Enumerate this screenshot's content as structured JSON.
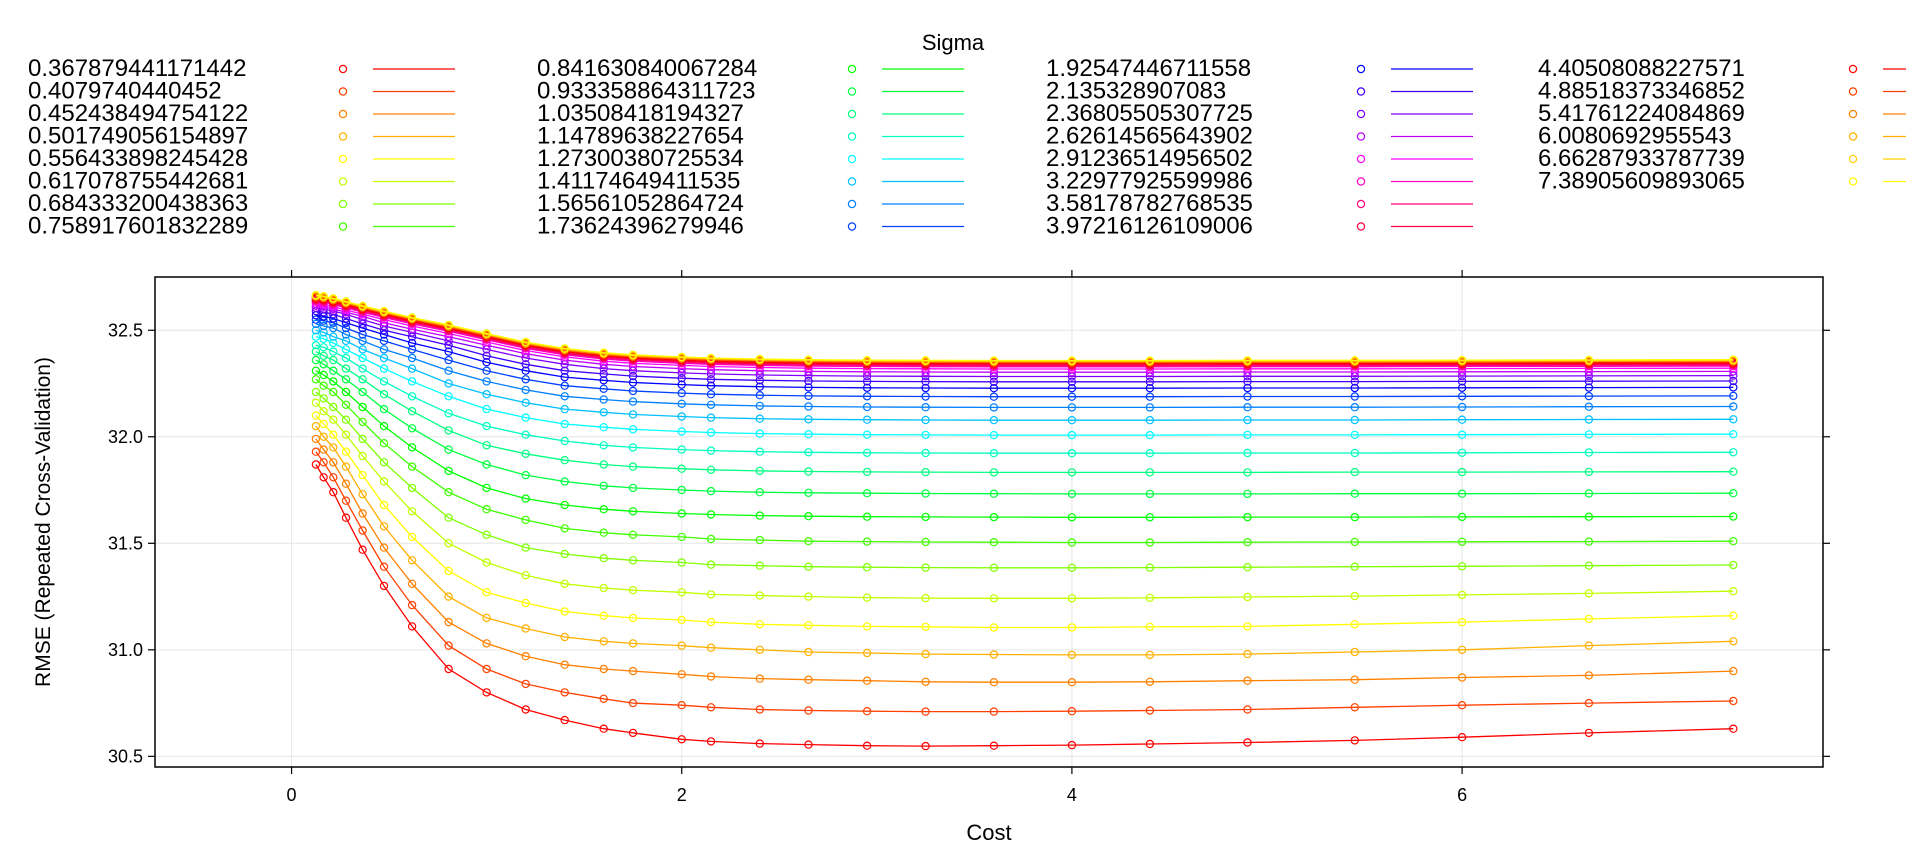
{
  "chart_data": {
    "type": "line",
    "legend_title": "Sigma",
    "xlabel": "Cost",
    "ylabel": "RMSE (Repeated Cross-Validation)",
    "xlim": [
      -0.7,
      7.85
    ],
    "ylim": [
      30.45,
      32.75
    ],
    "x_ticks": [
      0,
      2,
      4,
      6
    ],
    "y_ticks": [
      30.5,
      31.0,
      31.5,
      32.0,
      32.5
    ],
    "x_tick_labels": [
      "0",
      "2",
      "4",
      "6"
    ],
    "y_tick_labels": [
      "30.5",
      "31.0",
      "31.5",
      "32.0",
      "32.5"
    ],
    "legend_placement": "top",
    "grid": true,
    "x": [
      0.125,
      0.164,
      0.214,
      0.279,
      0.364,
      0.474,
      0.618,
      0.805,
      1.0,
      1.2,
      1.4,
      1.6,
      1.75,
      2.0,
      2.15,
      2.4,
      2.65,
      2.95,
      3.25,
      3.6,
      4.0,
      4.4,
      4.9,
      5.45,
      6.0,
      6.65,
      7.39
    ],
    "series": [
      {
        "name": "0.367879441171442",
        "color": "#FF0000",
        "values": [
          31.87,
          31.81,
          31.74,
          31.62,
          31.47,
          31.3,
          31.11,
          30.91,
          30.8,
          30.72,
          30.67,
          30.63,
          30.61,
          30.58,
          30.57,
          30.56,
          30.555,
          30.55,
          30.548,
          30.55,
          30.553,
          30.558,
          30.565,
          30.575,
          30.59,
          30.61,
          30.63
        ]
      },
      {
        "name": "0.4079740440452",
        "color": "#FF4000",
        "values": [
          31.93,
          31.88,
          31.81,
          31.7,
          31.56,
          31.39,
          31.21,
          31.02,
          30.91,
          30.84,
          30.8,
          30.77,
          30.75,
          30.74,
          30.73,
          30.72,
          30.715,
          30.712,
          30.71,
          30.71,
          30.712,
          30.715,
          30.72,
          30.73,
          30.74,
          30.75,
          30.76
        ]
      },
      {
        "name": "0.452438494754122",
        "color": "#FF8000",
        "values": [
          31.99,
          31.94,
          31.88,
          31.78,
          31.64,
          31.48,
          31.31,
          31.13,
          31.03,
          30.97,
          30.93,
          30.91,
          30.9,
          30.885,
          30.875,
          30.865,
          30.86,
          30.855,
          30.85,
          30.848,
          30.848,
          30.85,
          30.855,
          30.86,
          30.87,
          30.88,
          30.9
        ]
      },
      {
        "name": "0.501749056154897",
        "color": "#FFB000",
        "values": [
          32.05,
          32.0,
          31.95,
          31.86,
          31.73,
          31.58,
          31.42,
          31.25,
          31.15,
          31.1,
          31.06,
          31.04,
          31.03,
          31.02,
          31.01,
          31.0,
          30.99,
          30.985,
          30.98,
          30.978,
          30.976,
          30.976,
          30.98,
          30.99,
          31.0,
          31.02,
          31.04
        ]
      },
      {
        "name": "0.556433898245428",
        "color": "#FFFF00",
        "values": [
          32.1,
          32.06,
          32.01,
          31.93,
          31.82,
          31.68,
          31.53,
          31.37,
          31.27,
          31.22,
          31.18,
          31.16,
          31.15,
          31.14,
          31.13,
          31.12,
          31.115,
          31.11,
          31.108,
          31.105,
          31.105,
          31.108,
          31.11,
          31.12,
          31.13,
          31.145,
          31.16
        ]
      },
      {
        "name": "0.617078755442681",
        "color": "#C0FF00",
        "values": [
          32.16,
          32.12,
          32.08,
          32.01,
          31.91,
          31.79,
          31.65,
          31.5,
          31.41,
          31.35,
          31.31,
          31.29,
          31.28,
          31.27,
          31.26,
          31.255,
          31.25,
          31.245,
          31.243,
          31.242,
          31.242,
          31.244,
          31.248,
          31.252,
          31.258,
          31.265,
          31.275
        ]
      },
      {
        "name": "0.684333200438363",
        "color": "#80FF00",
        "values": [
          32.21,
          32.18,
          32.14,
          32.08,
          31.99,
          31.88,
          31.76,
          31.62,
          31.54,
          31.48,
          31.45,
          31.43,
          31.42,
          31.41,
          31.4,
          31.395,
          31.39,
          31.388,
          31.386,
          31.385,
          31.385,
          31.386,
          31.388,
          31.39,
          31.392,
          31.395,
          31.398
        ]
      },
      {
        "name": "0.758917601832289",
        "color": "#40FF00",
        "values": [
          32.27,
          32.24,
          32.21,
          32.15,
          32.07,
          31.97,
          31.86,
          31.74,
          31.66,
          31.61,
          31.57,
          31.55,
          31.54,
          31.53,
          31.52,
          31.515,
          31.51,
          31.508,
          31.506,
          31.505,
          31.504,
          31.504,
          31.505,
          31.506,
          31.507,
          31.508,
          31.51
        ]
      },
      {
        "name": "0.841630840067284",
        "color": "#00FF00",
        "values": [
          32.31,
          32.29,
          32.26,
          32.21,
          32.14,
          32.05,
          31.95,
          31.84,
          31.76,
          31.71,
          31.68,
          31.66,
          31.65,
          31.64,
          31.635,
          31.63,
          31.627,
          31.625,
          31.624,
          31.623,
          31.622,
          31.622,
          31.623,
          31.623,
          31.624,
          31.625,
          31.626
        ]
      },
      {
        "name": "0.933358864311723",
        "color": "#00FF40",
        "values": [
          32.36,
          32.34,
          32.31,
          32.27,
          32.21,
          32.13,
          32.04,
          31.94,
          31.87,
          31.82,
          31.79,
          31.77,
          31.76,
          31.75,
          31.745,
          31.74,
          31.737,
          31.735,
          31.734,
          31.733,
          31.732,
          31.732,
          31.732,
          31.733,
          31.733,
          31.734,
          31.735
        ]
      },
      {
        "name": "1.03508418194327",
        "color": "#00FF80",
        "values": [
          32.4,
          32.38,
          32.36,
          32.32,
          32.27,
          32.2,
          32.12,
          32.03,
          31.96,
          31.92,
          31.89,
          31.87,
          31.86,
          31.85,
          31.845,
          31.84,
          31.837,
          31.835,
          31.834,
          31.833,
          31.833,
          31.833,
          31.833,
          31.834,
          31.834,
          31.835,
          31.836
        ]
      },
      {
        "name": "1.14789638227654",
        "color": "#00FFC0",
        "values": [
          32.43,
          32.42,
          32.4,
          32.37,
          32.32,
          32.26,
          32.19,
          32.11,
          32.05,
          32.01,
          31.98,
          31.96,
          31.95,
          31.94,
          31.935,
          31.93,
          31.927,
          31.925,
          31.924,
          31.923,
          31.923,
          31.923,
          31.924,
          31.924,
          31.925,
          31.926,
          31.927
        ]
      },
      {
        "name": "1.27300380725534",
        "color": "#00FFFF",
        "values": [
          32.47,
          32.46,
          32.44,
          32.41,
          32.37,
          32.32,
          32.26,
          32.19,
          32.13,
          32.09,
          32.06,
          32.045,
          32.035,
          32.025,
          32.02,
          32.015,
          32.012,
          32.01,
          32.009,
          32.008,
          32.008,
          32.008,
          32.009,
          32.009,
          32.01,
          32.011,
          32.012
        ]
      },
      {
        "name": "1.41174649411535",
        "color": "#00C0FF",
        "values": [
          32.5,
          32.49,
          32.47,
          32.45,
          32.41,
          32.37,
          32.32,
          32.25,
          32.2,
          32.16,
          32.13,
          32.115,
          32.105,
          32.095,
          32.09,
          32.085,
          32.082,
          32.08,
          32.079,
          32.078,
          32.078,
          32.078,
          32.079,
          32.079,
          32.08,
          32.081,
          32.082
        ]
      },
      {
        "name": "1.56561052864724",
        "color": "#0080FF",
        "values": [
          32.53,
          32.52,
          32.51,
          32.48,
          32.45,
          32.41,
          32.37,
          32.31,
          32.26,
          32.22,
          32.19,
          32.175,
          32.165,
          32.155,
          32.15,
          32.145,
          32.142,
          32.14,
          32.139,
          32.138,
          32.138,
          32.138,
          32.139,
          32.139,
          32.14,
          32.141,
          32.142
        ]
      },
      {
        "name": "1.73624396279946",
        "color": "#0040FF",
        "values": [
          32.55,
          32.545,
          32.535,
          32.51,
          32.48,
          32.45,
          32.41,
          32.36,
          32.31,
          32.27,
          32.24,
          32.225,
          32.215,
          32.205,
          32.2,
          32.195,
          32.192,
          32.19,
          32.189,
          32.188,
          32.188,
          32.188,
          32.189,
          32.189,
          32.19,
          32.191,
          32.192
        ]
      },
      {
        "name": "1.92547446711558",
        "color": "#0000FF",
        "values": [
          32.57,
          32.565,
          32.555,
          32.535,
          32.51,
          32.48,
          32.44,
          32.4,
          32.35,
          32.31,
          32.28,
          32.265,
          32.255,
          32.245,
          32.24,
          32.235,
          32.232,
          32.23,
          32.229,
          32.228,
          32.228,
          32.228,
          32.229,
          32.229,
          32.23,
          32.231,
          32.232
        ]
      },
      {
        "name": "2.135328907083",
        "color": "#4000FF",
        "values": [
          32.59,
          32.585,
          32.575,
          32.555,
          32.53,
          32.5,
          32.47,
          32.43,
          32.38,
          32.34,
          32.31,
          32.295,
          32.285,
          32.275,
          32.27,
          32.265,
          32.262,
          32.26,
          32.259,
          32.258,
          32.258,
          32.258,
          32.259,
          32.259,
          32.26,
          32.261,
          32.262
        ]
      },
      {
        "name": "2.36805505307725",
        "color": "#8000FF",
        "values": [
          32.605,
          32.6,
          32.59,
          32.575,
          32.55,
          32.52,
          32.49,
          32.45,
          32.41,
          32.37,
          32.34,
          32.32,
          32.31,
          32.3,
          32.295,
          32.29,
          32.287,
          32.285,
          32.284,
          32.283,
          32.283,
          32.283,
          32.284,
          32.284,
          32.285,
          32.286,
          32.287
        ]
      },
      {
        "name": "2.62614565643902",
        "color": "#C000FF",
        "values": [
          32.615,
          32.61,
          32.6,
          32.585,
          32.565,
          32.535,
          32.505,
          32.47,
          32.43,
          32.39,
          32.36,
          32.34,
          32.33,
          32.32,
          32.315,
          32.31,
          32.307,
          32.305,
          32.304,
          32.303,
          32.303,
          32.303,
          32.304,
          32.304,
          32.305,
          32.306,
          32.307
        ]
      },
      {
        "name": "2.91236514956502",
        "color": "#FF00FF",
        "values": [
          32.625,
          32.62,
          32.61,
          32.595,
          32.575,
          32.55,
          32.52,
          32.485,
          32.445,
          32.405,
          32.375,
          32.355,
          32.345,
          32.335,
          32.33,
          32.325,
          32.322,
          32.32,
          32.319,
          32.318,
          32.318,
          32.318,
          32.319,
          32.319,
          32.32,
          32.321,
          32.322
        ]
      },
      {
        "name": "3.22977925599986",
        "color": "#FF00C0",
        "values": [
          32.635,
          32.63,
          32.62,
          32.605,
          32.585,
          32.56,
          32.53,
          32.495,
          32.455,
          32.415,
          32.385,
          32.365,
          32.355,
          32.345,
          32.34,
          32.335,
          32.332,
          32.33,
          32.329,
          32.328,
          32.328,
          32.328,
          32.329,
          32.329,
          32.33,
          32.331,
          32.332
        ]
      },
      {
        "name": "3.58178782768535",
        "color": "#FF0080",
        "values": [
          32.64,
          32.635,
          32.625,
          32.61,
          32.59,
          32.565,
          32.535,
          32.5,
          32.46,
          32.42,
          32.39,
          32.37,
          32.36,
          32.35,
          32.345,
          32.34,
          32.337,
          32.335,
          32.334,
          32.333,
          32.333,
          32.333,
          32.334,
          32.334,
          32.335,
          32.336,
          32.337
        ]
      },
      {
        "name": "3.97216126109006",
        "color": "#FF0040",
        "values": [
          32.645,
          32.64,
          32.63,
          32.615,
          32.595,
          32.57,
          32.54,
          32.505,
          32.465,
          32.425,
          32.395,
          32.375,
          32.365,
          32.355,
          32.35,
          32.345,
          32.342,
          32.34,
          32.339,
          32.338,
          32.338,
          32.338,
          32.339,
          32.339,
          32.34,
          32.341,
          32.342
        ]
      },
      {
        "name": "4.40508088227571",
        "color": "#FF0000",
        "values": [
          32.65,
          32.645,
          32.635,
          32.62,
          32.6,
          32.575,
          32.545,
          32.51,
          32.47,
          32.43,
          32.4,
          32.38,
          32.37,
          32.36,
          32.355,
          32.35,
          32.347,
          32.345,
          32.344,
          32.343,
          32.343,
          32.343,
          32.344,
          32.344,
          32.345,
          32.346,
          32.347
        ]
      },
      {
        "name": "4.88518373346852",
        "color": "#FF4000",
        "values": [
          32.655,
          32.65,
          32.64,
          32.625,
          32.605,
          32.58,
          32.55,
          32.515,
          32.475,
          32.435,
          32.405,
          32.385,
          32.375,
          32.365,
          32.36,
          32.355,
          32.352,
          32.35,
          32.349,
          32.348,
          32.348,
          32.348,
          32.349,
          32.349,
          32.35,
          32.351,
          32.352
        ]
      },
      {
        "name": "5.41761224084869",
        "color": "#FF8000",
        "values": [
          32.658,
          32.653,
          32.643,
          32.628,
          32.608,
          32.583,
          32.553,
          32.518,
          32.478,
          32.438,
          32.408,
          32.388,
          32.378,
          32.368,
          32.363,
          32.358,
          32.355,
          32.353,
          32.352,
          32.351,
          32.351,
          32.351,
          32.352,
          32.352,
          32.353,
          32.354,
          32.355
        ]
      },
      {
        "name": "6.0080692955543",
        "color": "#FFB000",
        "values": [
          32.661,
          32.656,
          32.646,
          32.631,
          32.611,
          32.586,
          32.556,
          32.521,
          32.481,
          32.441,
          32.411,
          32.391,
          32.381,
          32.371,
          32.366,
          32.361,
          32.358,
          32.356,
          32.355,
          32.354,
          32.354,
          32.354,
          32.355,
          32.355,
          32.356,
          32.357,
          32.358
        ]
      },
      {
        "name": "6.66287933787739",
        "color": "#FFD000",
        "values": [
          32.663,
          32.658,
          32.648,
          32.633,
          32.613,
          32.588,
          32.558,
          32.523,
          32.483,
          32.443,
          32.413,
          32.393,
          32.383,
          32.373,
          32.368,
          32.363,
          32.36,
          32.358,
          32.357,
          32.356,
          32.356,
          32.356,
          32.357,
          32.357,
          32.358,
          32.359,
          32.36
        ]
      },
      {
        "name": "7.38905609893065",
        "color": "#FFFF00",
        "values": [
          32.665,
          32.66,
          32.65,
          32.635,
          32.615,
          32.59,
          32.56,
          32.525,
          32.485,
          32.445,
          32.415,
          32.395,
          32.385,
          32.375,
          32.37,
          32.365,
          32.362,
          32.36,
          32.359,
          32.358,
          32.358,
          32.358,
          32.359,
          32.359,
          32.36,
          32.361,
          32.362
        ]
      }
    ]
  }
}
